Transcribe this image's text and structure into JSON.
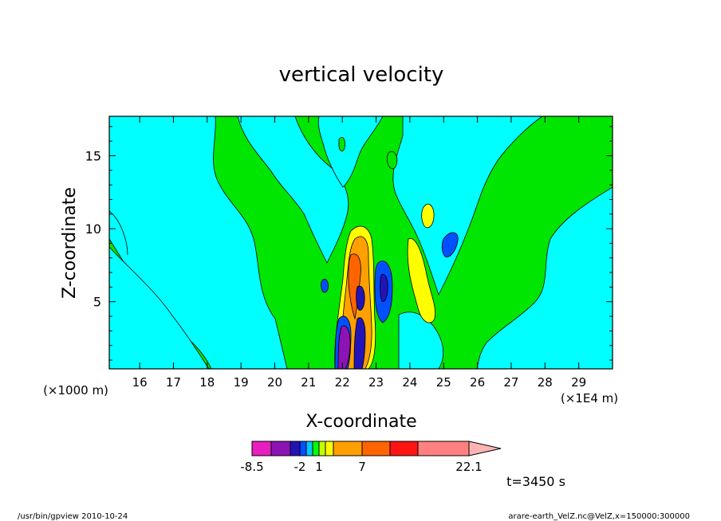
{
  "chart_data": {
    "type": "heatmap",
    "title": "vertical velocity",
    "xlabel": "X-coordinate",
    "ylabel": "Z-coordinate",
    "x_units_note": "(×1E4 m)",
    "y_units_note": "(×1000 m)",
    "xlim": [
      15.1,
      30.0
    ],
    "ylim": [
      0.4,
      17.7
    ],
    "x_ticks": [
      16,
      17,
      18,
      19,
      20,
      21,
      22,
      23,
      24,
      25,
      26,
      27,
      28,
      29
    ],
    "y_ticks": [
      5,
      10,
      15
    ],
    "colorbar": {
      "tick_labels": [
        "-8.5",
        "-2",
        "1",
        "7",
        "22.1"
      ],
      "levels": [
        -8.5,
        -6,
        -4,
        -2,
        -1,
        0,
        1,
        2,
        3,
        7,
        11,
        15,
        22.1
      ],
      "colors": [
        "#e81ec0",
        "#8c14b4",
        "#2314b8",
        "#0050ff",
        "#00c8ff",
        "#00ff00",
        "#c8ff00",
        "#ffff00",
        "#ffa000",
        "#ff6400",
        "#ff1414",
        "#ff8080"
      ],
      "extend": "max"
    },
    "grid": false,
    "annotation_time": "t=3450 s"
  },
  "footer": {
    "left": "/usr/bin/gpview   2010-10-24",
    "right": "arare-earth_VelZ.nc@VelZ,x=150000:300000"
  },
  "colors": {
    "cyan": "#00ffff",
    "green": "#00e600",
    "yellow": "#ffff00",
    "orange": "#ffa000",
    "dark_orange": "#ff6400",
    "blue": "#0050ff",
    "dark_blue": "#2314b8",
    "purple": "#8c14b4"
  }
}
